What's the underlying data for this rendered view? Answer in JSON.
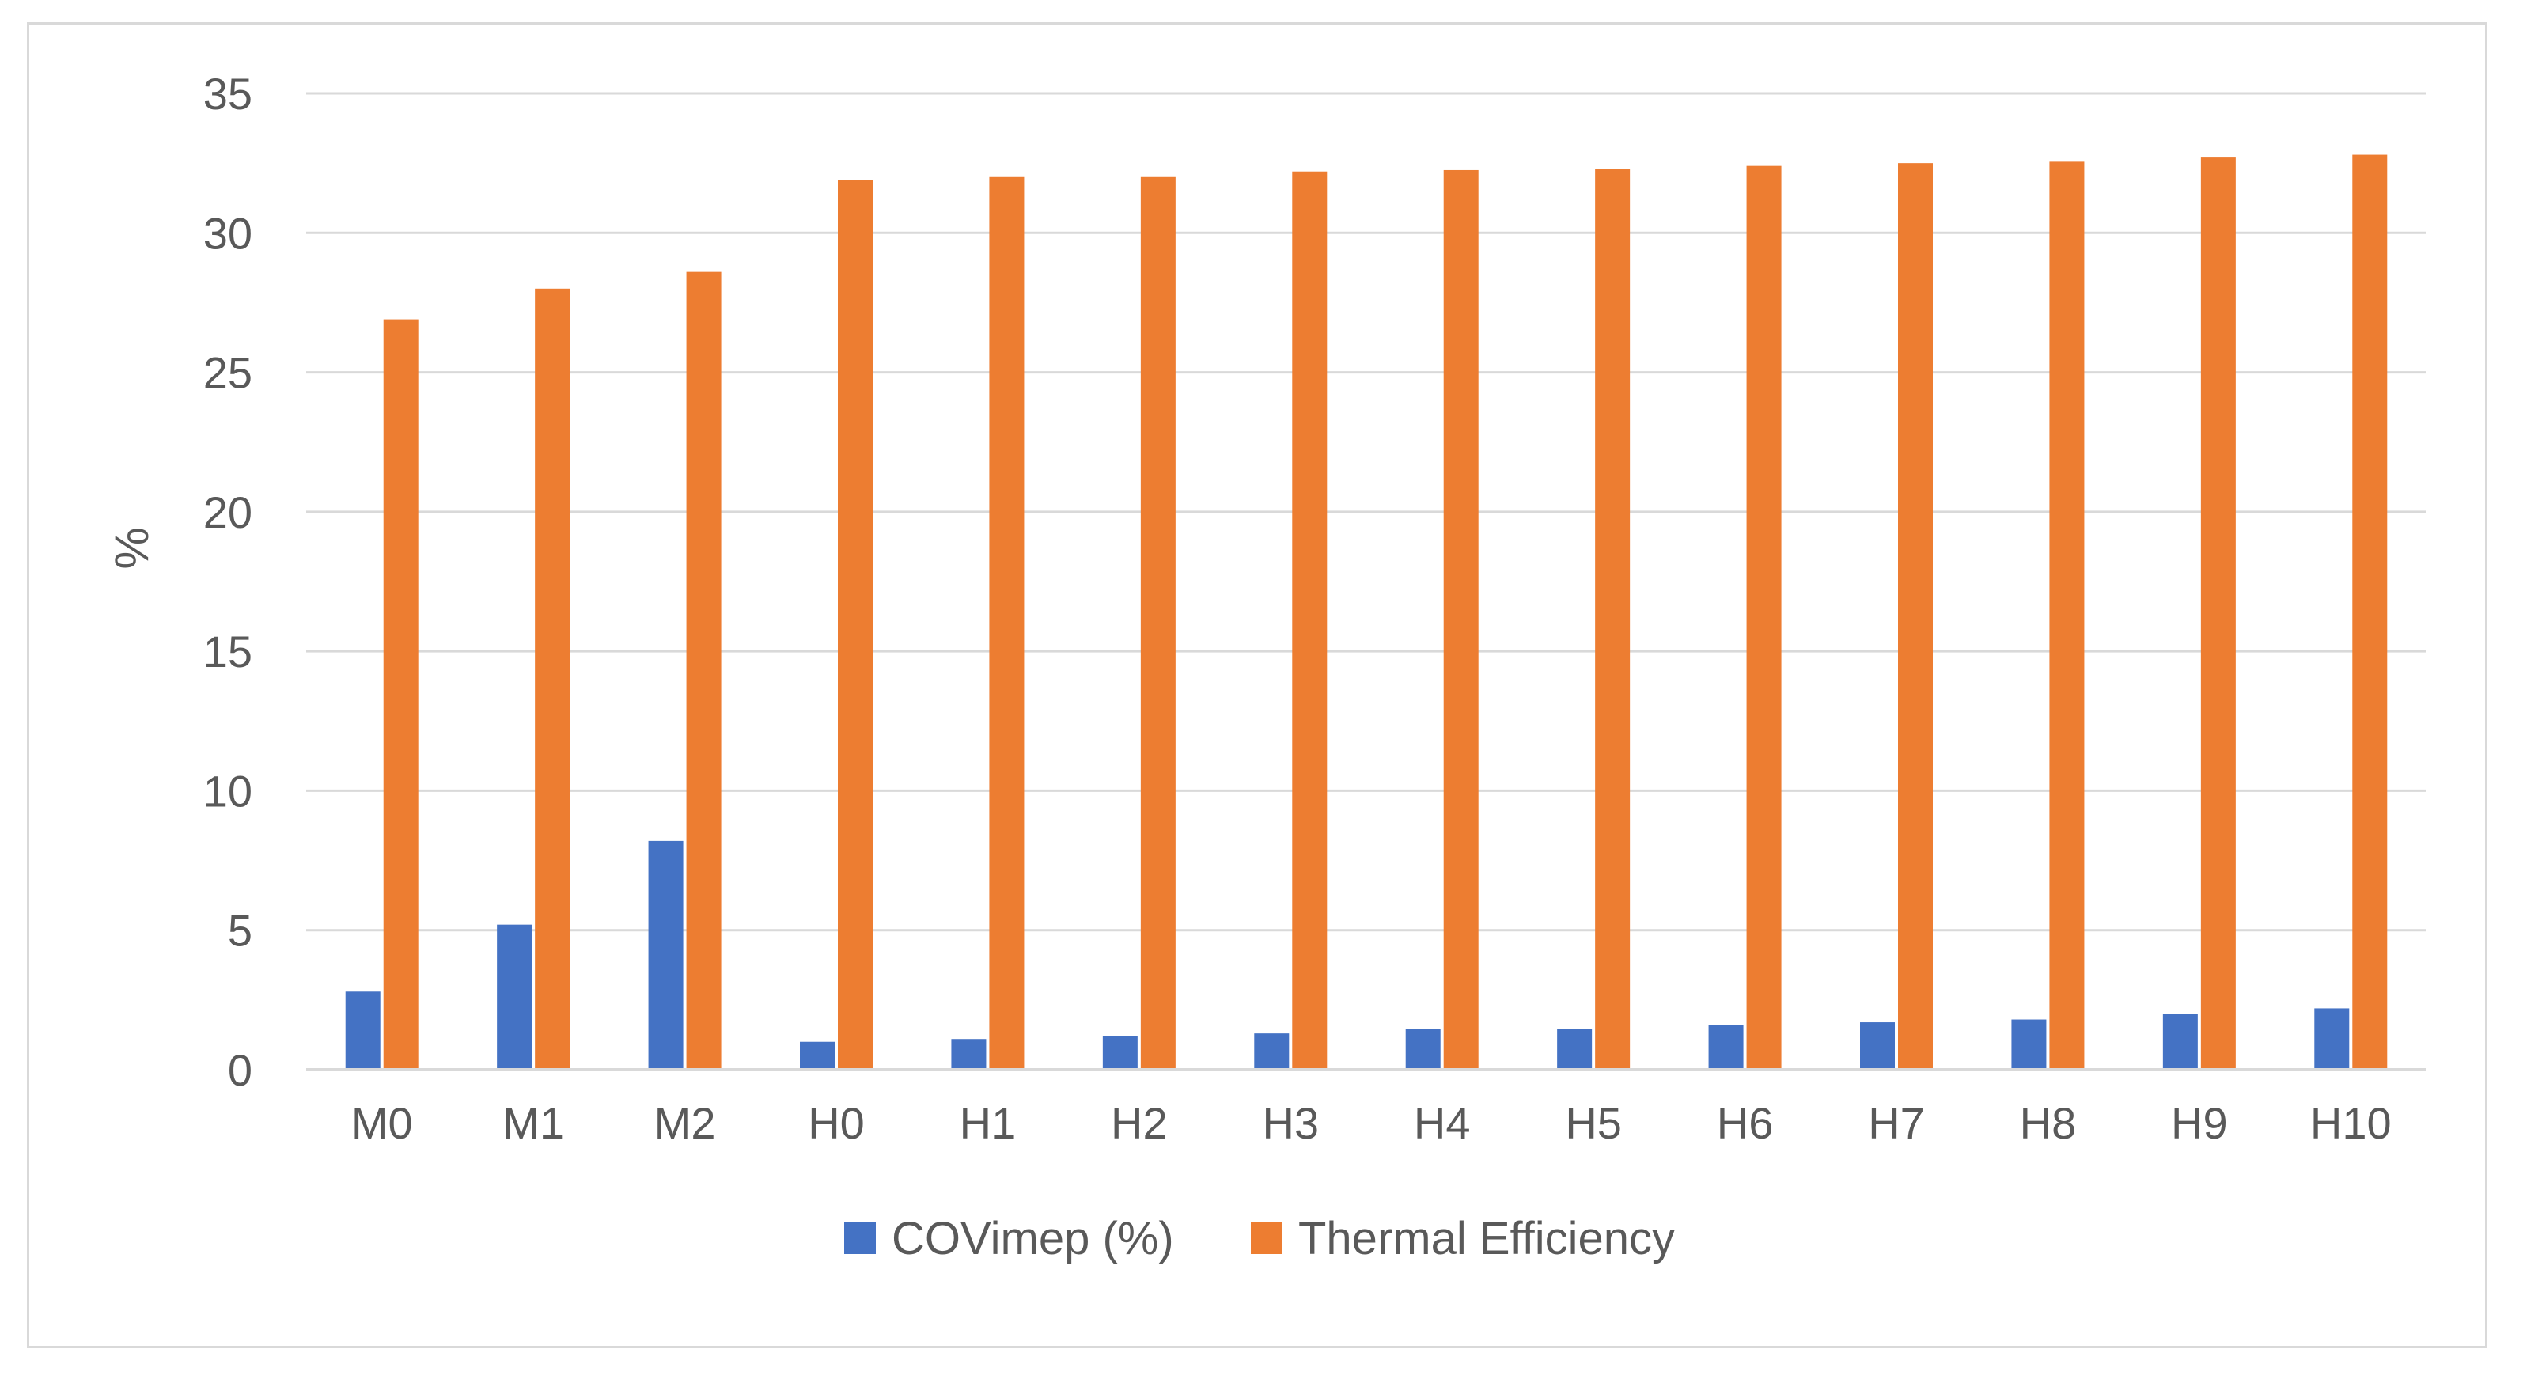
{
  "chart_data": {
    "type": "bar",
    "title": "",
    "xlabel": "",
    "ylabel": "%",
    "ylim": [
      0,
      35
    ],
    "yticks": [
      0,
      5,
      10,
      15,
      20,
      25,
      30,
      35
    ],
    "grid": true,
    "legend_position": "bottom",
    "categories": [
      "M0",
      "M1",
      "M2",
      "H0",
      "H1",
      "H2",
      "H3",
      "H4",
      "H5",
      "H6",
      "H7",
      "H8",
      "H9",
      "H10"
    ],
    "series": [
      {
        "name": "COVimep (%)",
        "color": "#4472c4",
        "values": [
          2.8,
          5.2,
          8.2,
          1.0,
          1.1,
          1.2,
          1.3,
          1.45,
          1.45,
          1.6,
          1.7,
          1.8,
          2.0,
          2.2
        ]
      },
      {
        "name": "Thermal Efficiency",
        "color": "#ed7d31",
        "values": [
          26.9,
          28.0,
          28.6,
          31.9,
          32.0,
          32.0,
          32.2,
          32.25,
          32.3,
          32.4,
          32.5,
          32.55,
          32.7,
          32.8
        ]
      }
    ]
  },
  "colors": {
    "gridline": "#d9d9d9",
    "axis_line": "#d9d9d9",
    "text": "#595959"
  }
}
